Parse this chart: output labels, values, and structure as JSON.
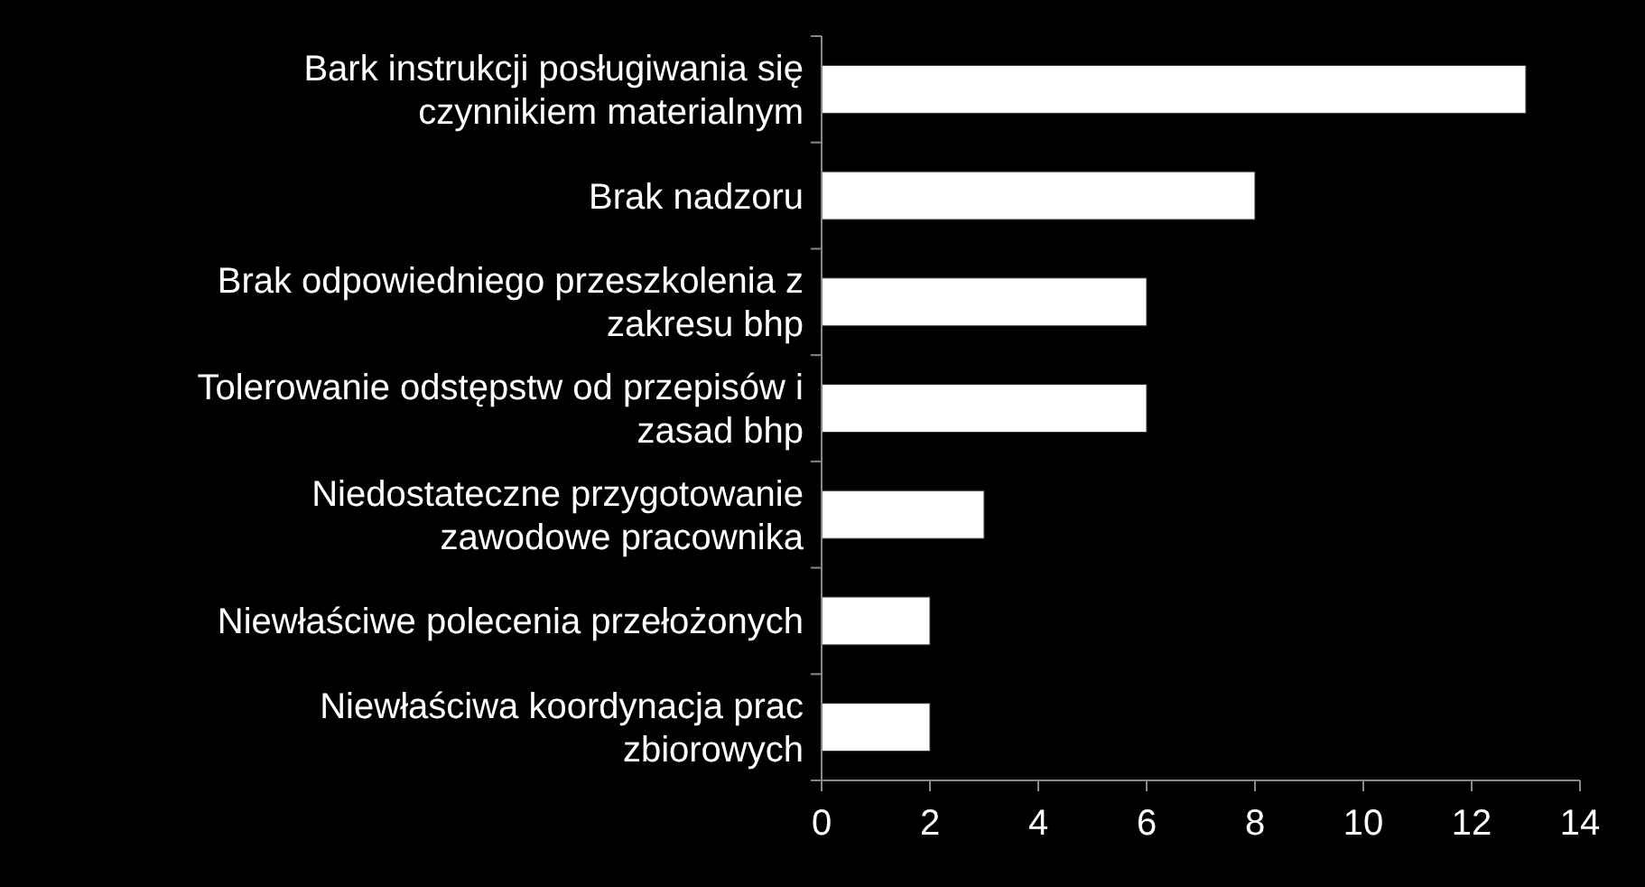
{
  "chart_data": {
    "type": "bar",
    "orientation": "horizontal",
    "categories": [
      "Bark instrukcji posługiwania się czynnikiem materialnym",
      "Brak nadzoru",
      "Brak odpowiedniego przeszkolenia z zakresu bhp",
      "Tolerowanie odstępstw od przepisów i zasad bhp",
      "Niedostateczne przygotowanie zawodowe pracownika",
      "Niewłaściwe polecenia przełożonych",
      "Niewłaściwa koordynacja prac zbiorowych"
    ],
    "values": [
      13,
      8,
      6,
      6,
      3,
      2,
      2
    ],
    "color": "#ffffff",
    "xlim": [
      0,
      14
    ],
    "xticks": [
      0,
      2,
      4,
      6,
      8,
      10,
      12,
      14
    ]
  }
}
